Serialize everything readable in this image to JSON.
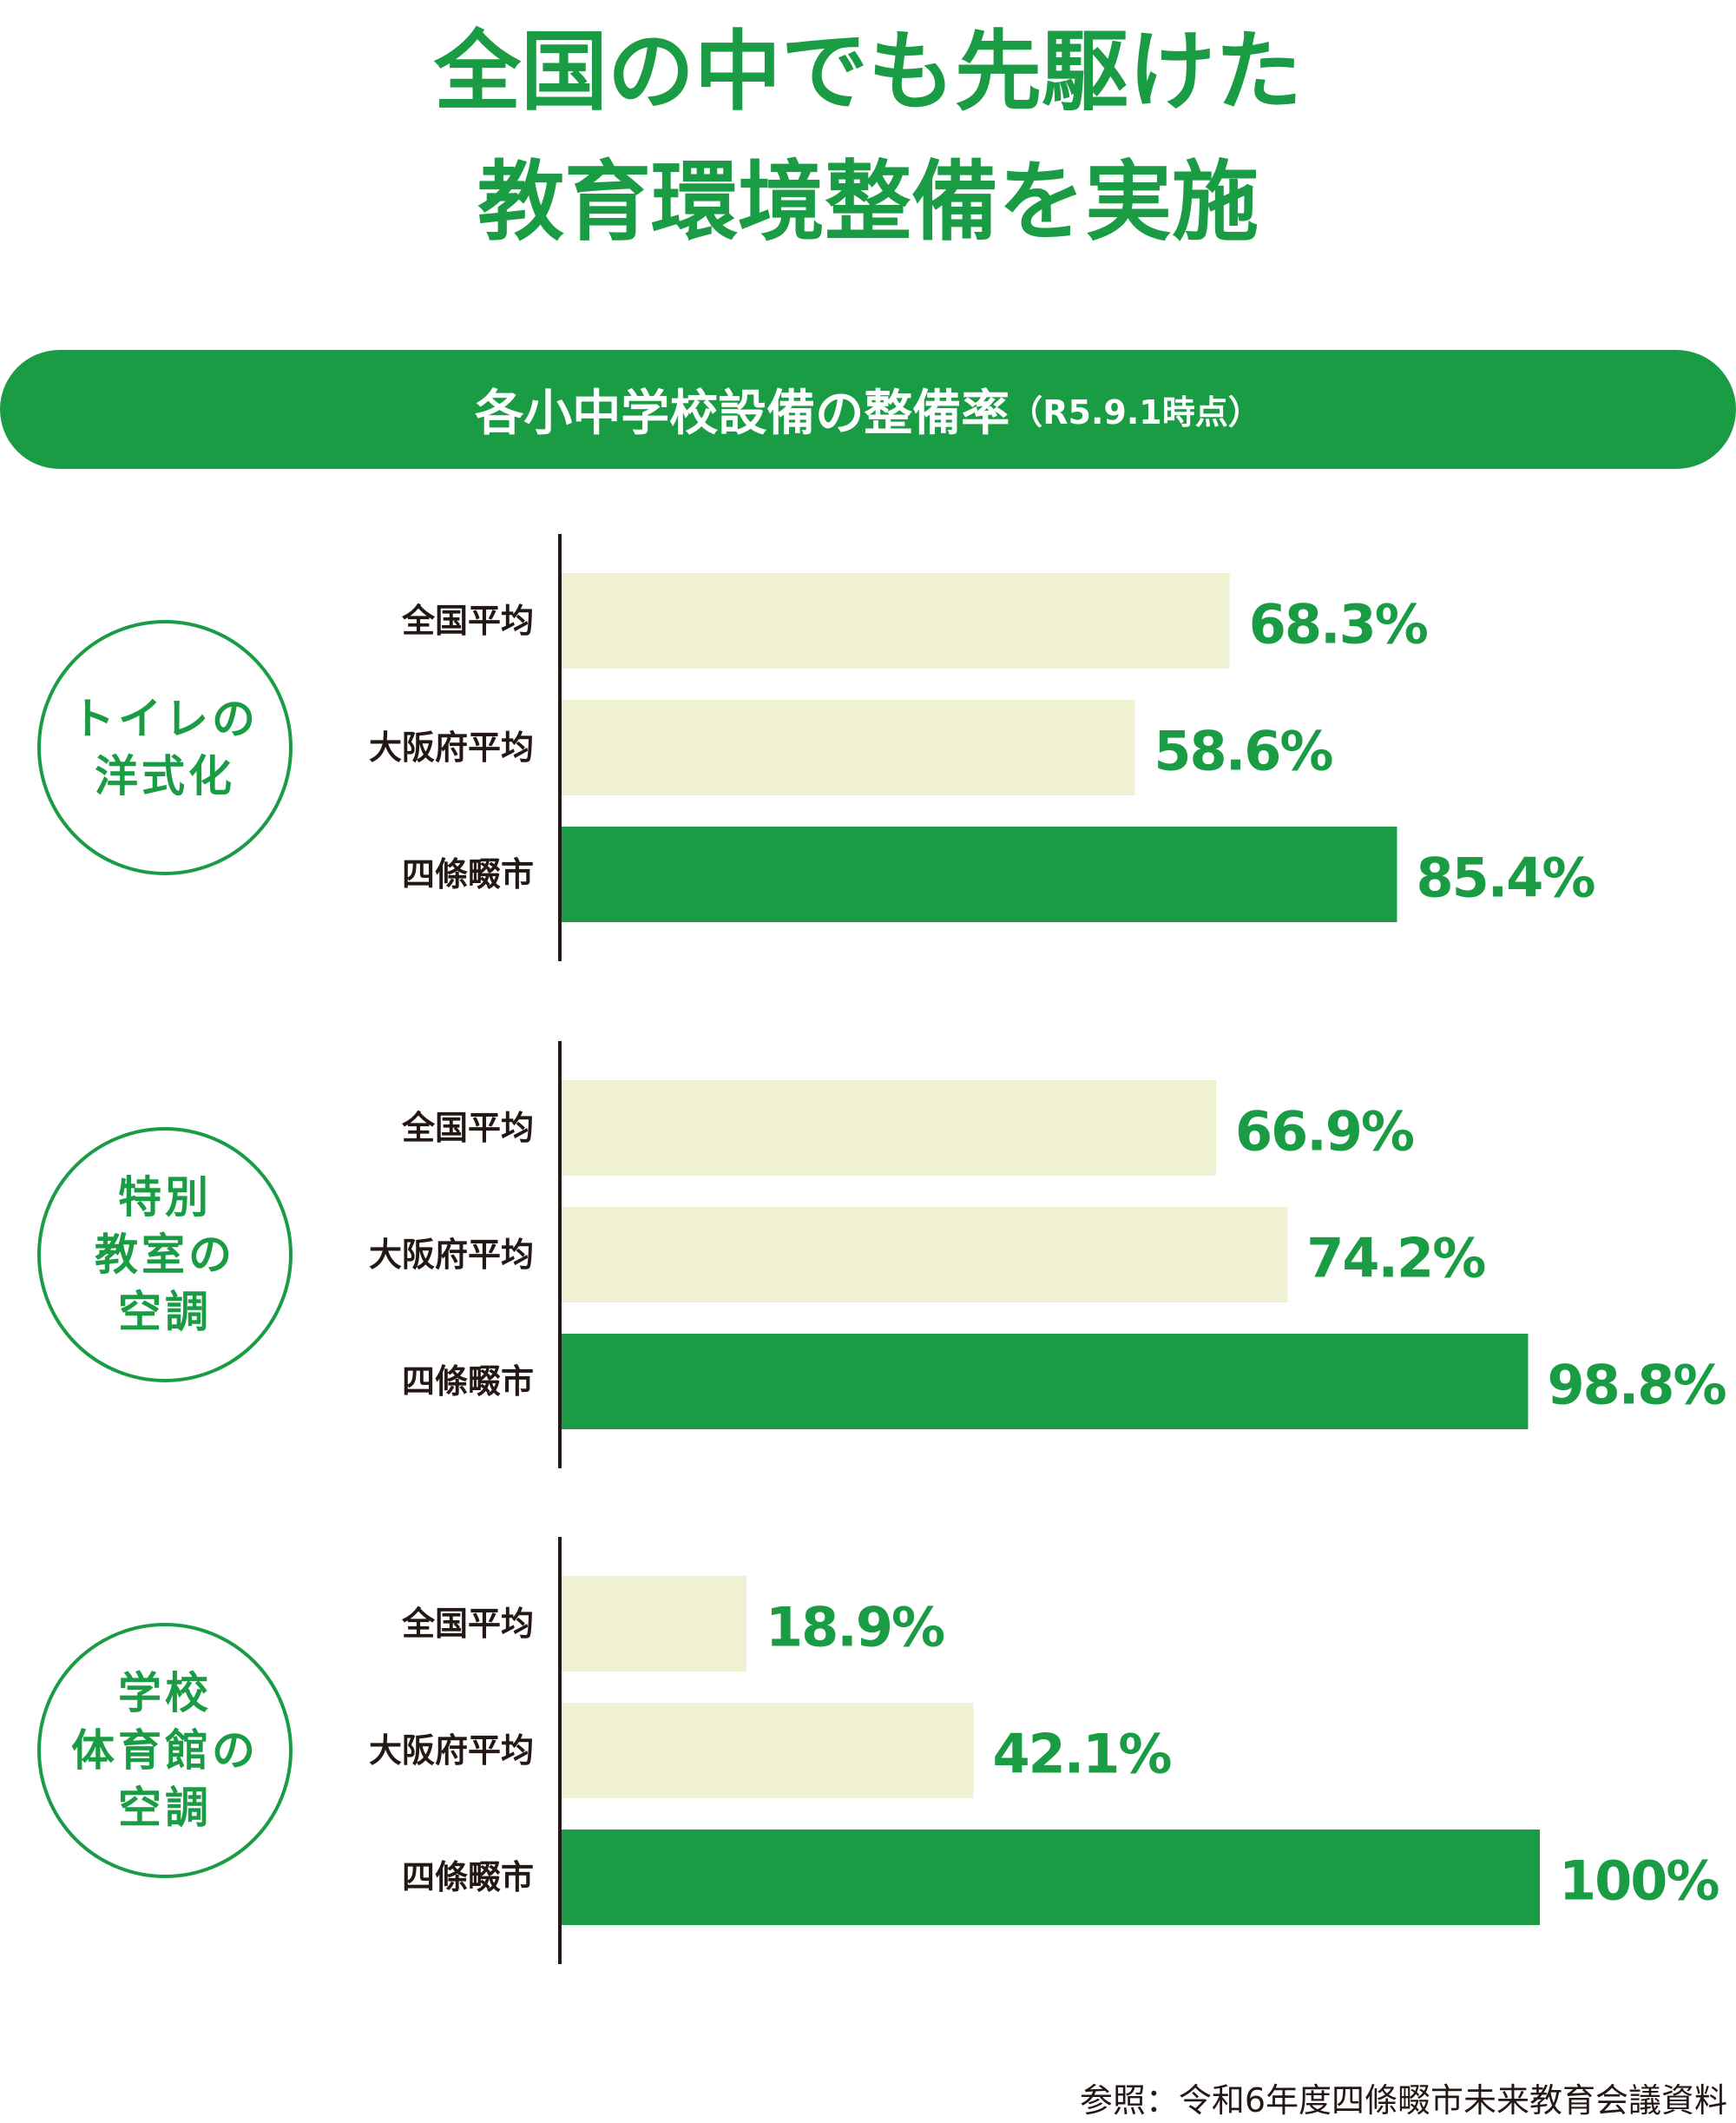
{
  "title_lines": [
    "全国の中でも先駆けた",
    "教育環境整備を実施"
  ],
  "subtitle": "各小中学校設備の整備率",
  "subtitle_note": "（R5.9.1時点）",
  "source": "参照：令和6年度四條畷市未来教育会議資料",
  "colors": {
    "accent": "#1a9c44",
    "light_bar": "#f0f0d2",
    "axis": "#231815"
  },
  "chart_data": [
    {
      "type": "bar",
      "group_label_lines": [
        "トイレの",
        "洋式化"
      ],
      "categories": [
        "全国平均",
        "大阪府平均",
        "四條畷市"
      ],
      "values": [
        68.3,
        58.6,
        85.4
      ],
      "value_labels": [
        "68.3%",
        "58.6%",
        "85.4%"
      ],
      "xlim": [
        0,
        100
      ]
    },
    {
      "type": "bar",
      "group_label_lines": [
        "特別",
        "教室の",
        "空調"
      ],
      "categories": [
        "全国平均",
        "大阪府平均",
        "四條畷市"
      ],
      "values": [
        66.9,
        74.2,
        98.8
      ],
      "value_labels": [
        "66.9%",
        "74.2%",
        "98.8%"
      ],
      "xlim": [
        0,
        100
      ]
    },
    {
      "type": "bar",
      "group_label_lines": [
        "学校",
        "体育館の",
        "空調"
      ],
      "categories": [
        "全国平均",
        "大阪府平均",
        "四條畷市"
      ],
      "values": [
        18.9,
        42.1,
        100
      ],
      "value_labels": [
        "18.9%",
        "42.1%",
        "100%"
      ],
      "xlim": [
        0,
        100
      ]
    }
  ]
}
